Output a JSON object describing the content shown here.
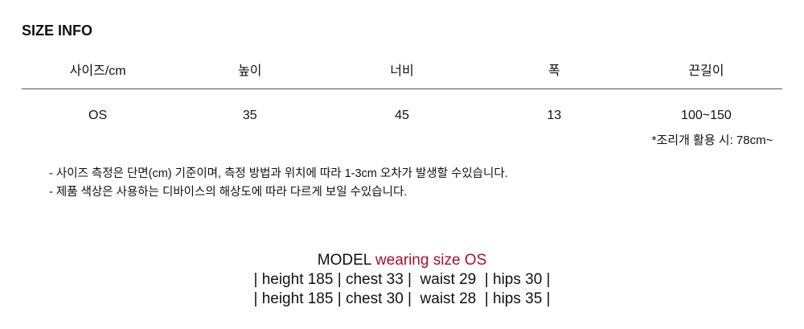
{
  "title": "SIZE INFO",
  "headers": [
    "사이즈/cm",
    "높이",
    "너비",
    "폭",
    "끈길이"
  ],
  "row": [
    "OS",
    "35",
    "45",
    "13",
    "100~150"
  ],
  "strap_note": "*조리개 활용 시: 78cm~",
  "notes": [
    "- 사이즈 측정은 단면(cm) 기준이며, 측정 방법과 위치에 따라 1-3cm 오차가 발생할 수있습니다.",
    "- 제품 색상은 사용하는 디바이스의 해상도에 따라 다르게 보일 수있습니다."
  ],
  "model": {
    "label": "MODEL",
    "wearing": "wearing size OS",
    "lines": [
      "| height 185 | chest 33 |  waist 29  | hips 30 |",
      "| height 185 | chest 30 |  waist 28  | hips 35 |"
    ]
  },
  "colors": {
    "accent": "#a8102a"
  }
}
